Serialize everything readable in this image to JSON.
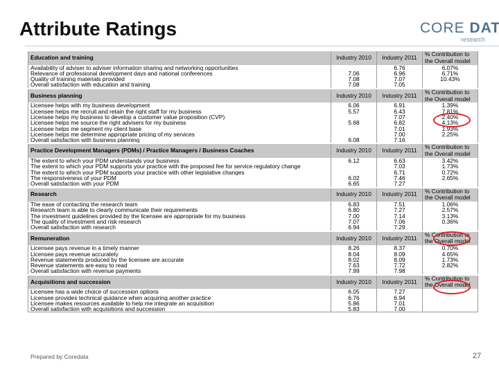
{
  "title": "Attribute Ratings",
  "logo": {
    "word1": "CORE",
    "word2": "DATA",
    "sub": "research"
  },
  "footer": "Prepared by Coredata",
  "page_number": "27",
  "sections": [
    {
      "name": "Education and training",
      "col1": "Industry 2010",
      "col2": "Industry 2011",
      "col3": "% Contribution to the Overall model",
      "rows": [
        {
          "label": "Availability of adviser to adviser information sharing and networking opportunities",
          "v2010": "",
          "v2011": "6.76",
          "pct": "6.07%"
        },
        {
          "label": "Relevance of professional development days and national conferences",
          "v2010": "7.06",
          "v2011": "6.96",
          "pct": "6.71%"
        },
        {
          "label": "Quality of training materials provided",
          "v2010": "7.08",
          "v2011": "7.07",
          "pct": "10.43%"
        },
        {
          "label": "Overall satisfaction with education and training",
          "v2010": "7.08",
          "v2011": "7.05",
          "pct": ""
        }
      ]
    },
    {
      "name": "Business planning",
      "col1": "Industry 2010",
      "col2": "Industry 2011",
      "col3": "% Contribution to the Overall model",
      "rows": [
        {
          "label": "Licensee helps with my business development",
          "v2010": "6.06",
          "v2011": "6.91",
          "pct": "1.39%"
        },
        {
          "label": "Licensee helps me recruit and retain the right staff for my business",
          "v2010": "5.57",
          "v2011": "6.43",
          "pct": "7.81%"
        },
        {
          "label": "Licensee helps my business to develop a customer value proposition (CVP)",
          "v2010": "",
          "v2011": "7.07",
          "pct": "2.40%"
        },
        {
          "label": "Licensee helps me source the right advisers for my business",
          "v2010": "5.68",
          "v2011": "6.82",
          "pct": "4.13%"
        },
        {
          "label": "Licensee helps me segment my client base",
          "v2010": "",
          "v2011": "7.01",
          "pct": "1.93%"
        },
        {
          "label": "Licensee helps me determine appropriate pricing of my services",
          "v2010": "",
          "v2011": "7.00",
          "pct": "2.25%"
        },
        {
          "label": "Overall satisfaction with business planning",
          "v2010": "6.08",
          "v2011": "7.16",
          "pct": ""
        }
      ]
    },
    {
      "name": "Practice Development Managers (PDMs) / Practice Managers / Business Coaches",
      "col1": "Industry 2010",
      "col2": "Industry 2011",
      "col3": "% Contribution to the Overall model",
      "rows": [
        {
          "label": "The extent to which your PDM understands your business",
          "v2010": "6.12",
          "v2011": "6.63",
          "pct": "3.42%"
        },
        {
          "label": "The extent to which your PDM supports your practice with the proposed fee for service regulatory change",
          "v2010": "",
          "v2011": "7.03",
          "pct": "1.73%"
        },
        {
          "label": "The extent to which your PDM supports your practice with other legislative changes",
          "v2010": "",
          "v2011": "6.71",
          "pct": "0.72%"
        },
        {
          "label": "The responsiveness of your PDM",
          "v2010": "6.02",
          "v2011": "7.46",
          "pct": "2.65%"
        },
        {
          "label": "Overall satisfaction with your PDM",
          "v2010": "6.65",
          "v2011": "7.27",
          "pct": ""
        }
      ]
    },
    {
      "name": "Research",
      "col1": "Industry 2010",
      "col2": "Industry 2011",
      "col3": "% Contribution to the Overall model",
      "rows": [
        {
          "label": "The ease of contacting the research team",
          "v2010": "6.83",
          "v2011": "7.51",
          "pct": "1.06%"
        },
        {
          "label": "Research team is able to clearly communicate their requirements",
          "v2010": "6.80",
          "v2011": "7.27",
          "pct": "2.57%"
        },
        {
          "label": "The investment guidelines provided by the licensee are appropriate for my business",
          "v2010": "7.00",
          "v2011": "7.14",
          "pct": "3.13%"
        },
        {
          "label": "The quality of investment and risk research",
          "v2010": "7.07",
          "v2011": "7.06",
          "pct": "0.36%"
        },
        {
          "label": "Overall satisfaction with research",
          "v2010": "6.94",
          "v2011": "7.29",
          "pct": ""
        }
      ]
    },
    {
      "name": "Remuneration",
      "col1": "Industry 2010",
      "col2": "Industry 2011",
      "col3": "% Contribution to the Overall model",
      "rows": [
        {
          "label": "Licensee pays revenue in a timely manner",
          "v2010": "8.26",
          "v2011": "8.37",
          "pct": "0.70%"
        },
        {
          "label": "Licensee pays revenue accurately",
          "v2010": "8.04",
          "v2011": "8.09",
          "pct": "4.65%"
        },
        {
          "label": "Revenue statements produced by the licensee are accurate",
          "v2010": "8.02",
          "v2011": "8.09",
          "pct": "1.73%"
        },
        {
          "label": "Revenue statements are easy to read",
          "v2010": "7.63",
          "v2011": "7.72",
          "pct": "2.82%"
        },
        {
          "label": "Overall satisfaction with revenue payments",
          "v2010": "7.99",
          "v2011": "7.98",
          "pct": ""
        }
      ]
    },
    {
      "name": "Acquisitions and succession",
      "col1": "Industry 2010",
      "col2": "Industry 2011",
      "col3": "% Contribution to the Overall model",
      "rows": [
        {
          "label": "Licensee has a wide choice of succession options",
          "v2010": "6.05",
          "v2011": "7.27",
          "pct": ""
        },
        {
          "label": "Licensee provides technical guidance when acquiring another practice",
          "v2010": "6.76",
          "v2011": "6.94",
          "pct": ""
        },
        {
          "label": "Licensee makes resources available to help me integrate an acquisition",
          "v2010": "5.86",
          "v2011": "7.01",
          "pct": ""
        },
        {
          "label": "Overall satisfaction with acquisitions and succession",
          "v2010": "5.83",
          "v2011": "7.00",
          "pct": ""
        }
      ]
    }
  ],
  "highlight_color": "#e0202a"
}
